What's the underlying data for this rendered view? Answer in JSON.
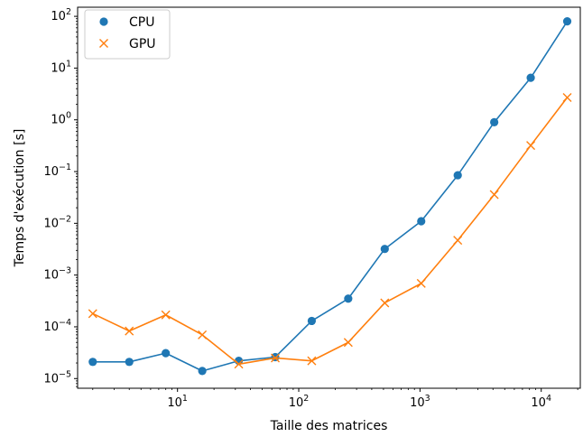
{
  "chart_data": {
    "type": "line",
    "xscale": "log",
    "yscale": "log",
    "xlabel": "Taille des matrices",
    "ylabel": "Temps d'exécution [s]",
    "xlim": [
      1.5,
      21000
    ],
    "ylim": [
      6.5e-06,
      150
    ],
    "x": [
      2,
      4,
      8,
      16,
      32,
      64,
      128,
      256,
      512,
      1024,
      2048,
      4096,
      8192,
      16384
    ],
    "series": [
      {
        "name": "CPU",
        "color": "#1f77b4",
        "marker": "circle",
        "values": [
          2.1e-05,
          2.1e-05,
          3.1e-05,
          1.4e-05,
          2.2e-05,
          2.6e-05,
          0.00013,
          0.00035,
          0.0032,
          0.011,
          0.085,
          0.9,
          6.5,
          80
        ]
      },
      {
        "name": "GPU",
        "color": "#ff7f0e",
        "marker": "x",
        "values": [
          0.00018,
          8.3e-05,
          0.00017,
          7e-05,
          1.9e-05,
          2.5e-05,
          2.2e-05,
          5e-05,
          0.00029,
          0.00069,
          0.0047,
          0.036,
          0.32,
          2.7
        ]
      }
    ],
    "xticks": [
      {
        "value": 10,
        "base": "10",
        "exp": "1"
      },
      {
        "value": 100,
        "base": "10",
        "exp": "2"
      },
      {
        "value": 1000,
        "base": "10",
        "exp": "3"
      },
      {
        "value": 10000,
        "base": "10",
        "exp": "4"
      }
    ],
    "yticks": [
      {
        "value": 1e-05,
        "base": "10",
        "exp": "−5"
      },
      {
        "value": 0.0001,
        "base": "10",
        "exp": "−4"
      },
      {
        "value": 0.001,
        "base": "10",
        "exp": "−3"
      },
      {
        "value": 0.01,
        "base": "10",
        "exp": "−2"
      },
      {
        "value": 0.1,
        "base": "10",
        "exp": "−1"
      },
      {
        "value": 1,
        "base": "10",
        "exp": "0"
      },
      {
        "value": 10,
        "base": "10",
        "exp": "1"
      },
      {
        "value": 100,
        "base": "10",
        "exp": "2"
      }
    ],
    "legend": "top-left",
    "grid": false
  }
}
